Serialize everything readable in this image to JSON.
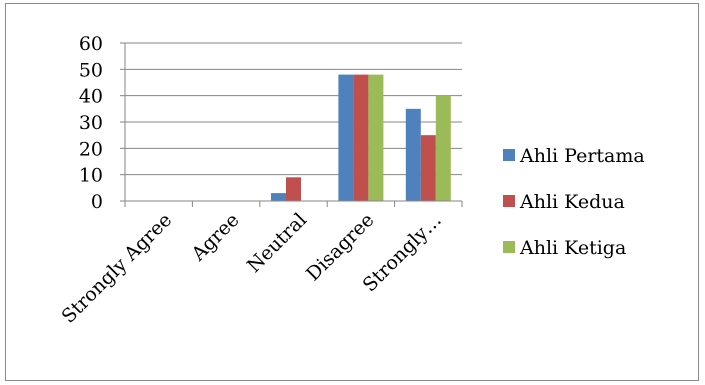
{
  "chart_data": {
    "type": "bar",
    "categories": [
      "Strongly Agree",
      "Agree",
      "Neutral",
      "Disagree",
      "Strongly…"
    ],
    "series": [
      {
        "name": "Ahli Pertama",
        "color": "#4f81bd",
        "values": [
          0,
          0,
          3,
          48,
          35
        ]
      },
      {
        "name": "Ahli Kedua",
        "color": "#c0504d",
        "values": [
          0,
          0,
          9,
          48,
          25
        ]
      },
      {
        "name": "Ahli Ketiga",
        "color": "#9bbb59",
        "values": [
          0,
          0,
          0,
          48,
          40
        ]
      }
    ],
    "title": "",
    "xlabel": "",
    "ylabel": "",
    "ylim": [
      0,
      60
    ],
    "yticks": [
      "0",
      "10",
      "20",
      "30",
      "40",
      "50",
      "60"
    ],
    "grid": true,
    "legend_position": "right"
  }
}
